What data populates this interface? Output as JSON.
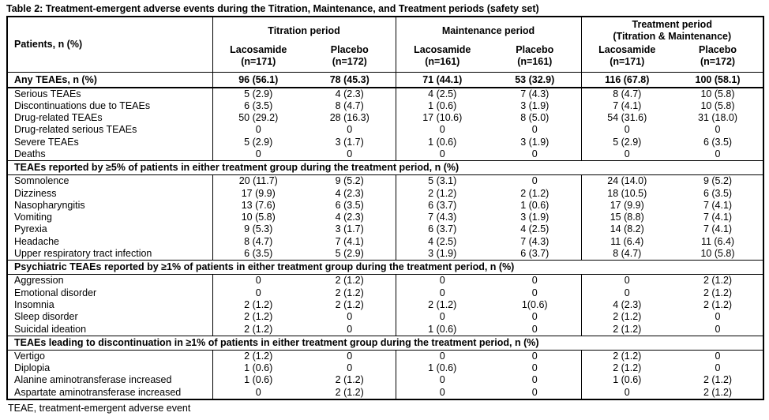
{
  "title": "Table 2: Treatment-emergent adverse events during the Titration, Maintenance, and Treatment periods (safety set)",
  "footnote": "TEAE, treatment-emergent adverse event",
  "table": {
    "row_header": "Patients, n (%)",
    "columns": {
      "groups": [
        {
          "label": "Titration period",
          "sublabel": "",
          "cols": [
            {
              "drug": "Lacosamide",
              "n": "(n=171)"
            },
            {
              "drug": "Placebo",
              "n": "(n=172)"
            }
          ]
        },
        {
          "label": "Maintenance period",
          "sublabel": "",
          "cols": [
            {
              "drug": "Lacosamide",
              "n": "(n=161)"
            },
            {
              "drug": "Placebo",
              "n": "(n=161)"
            }
          ]
        },
        {
          "label": "Treatment period",
          "sublabel": "(Titration & Maintenance)",
          "cols": [
            {
              "drug": "Lacosamide",
              "n": "(n=171)"
            },
            {
              "drug": "Placebo",
              "n": "(n=172)"
            }
          ]
        }
      ]
    },
    "any_row": {
      "label": "Any TEAEs, n (%)",
      "values": [
        "96 (56.1)",
        "78 (45.3)",
        "71 (44.1)",
        "53 (32.9)",
        "116 (67.8)",
        "100 (58.1)"
      ]
    },
    "sections": [
      {
        "header": "",
        "rows": [
          {
            "label": "Serious TEAEs",
            "values": [
              "5 (2.9)",
              "4 (2.3)",
              "4 (2.5)",
              "7 (4.3)",
              "8 (4.7)",
              "10 (5.8)"
            ]
          },
          {
            "label": "Discontinuations due to TEAEs",
            "values": [
              "6 (3.5)",
              "8 (4.7)",
              "1 (0.6)",
              "3 (1.9)",
              "7 (4.1)",
              "10 (5.8)"
            ]
          },
          {
            "label": "Drug-related TEAEs",
            "values": [
              "50 (29.2)",
              "28 (16.3)",
              "17 (10.6)",
              "8 (5.0)",
              "54 (31.6)",
              "31 (18.0)"
            ]
          },
          {
            "label": "Drug-related serious TEAEs",
            "values": [
              "0",
              "0",
              "0",
              "0",
              "0",
              "0"
            ]
          },
          {
            "label": "Severe TEAEs",
            "values": [
              "5 (2.9)",
              "3 (1.7)",
              "1 (0.6)",
              "3 (1.9)",
              "5 (2.9)",
              "6 (3.5)"
            ]
          },
          {
            "label": "Deaths",
            "values": [
              "0",
              "0",
              "0",
              "0",
              "0",
              "0"
            ]
          }
        ]
      },
      {
        "header": "TEAEs reported by ≥5% of patients in either treatment group during the treatment period, n (%)",
        "rows": [
          {
            "label": "Somnolence",
            "values": [
              "20 (11.7)",
              "9 (5.2)",
              "5 (3.1)",
              "0",
              "24 (14.0)",
              "9 (5.2)"
            ]
          },
          {
            "label": "Dizziness",
            "values": [
              "17 (9.9)",
              "4 (2.3)",
              "2 (1.2)",
              "2 (1.2)",
              "18 (10.5)",
              "6 (3.5)"
            ]
          },
          {
            "label": "Nasopharyngitis",
            "values": [
              "13 (7.6)",
              "6 (3.5)",
              "6 (3.7)",
              "1 (0.6)",
              "17 (9.9)",
              "7 (4.1)"
            ]
          },
          {
            "label": "Vomiting",
            "values": [
              "10 (5.8)",
              "4 (2.3)",
              "7 (4.3)",
              "3 (1.9)",
              "15 (8.8)",
              "7 (4.1)"
            ]
          },
          {
            "label": "Pyrexia",
            "values": [
              "9 (5.3)",
              "3 (1.7)",
              "6 (3.7)",
              "4 (2.5)",
              "14 (8.2)",
              "7 (4.1)"
            ]
          },
          {
            "label": "Headache",
            "values": [
              "8 (4.7)",
              "7 (4.1)",
              "4 (2.5)",
              "7 (4.3)",
              "11 (6.4)",
              "11 (6.4)"
            ]
          },
          {
            "label": "Upper respiratory tract infection",
            "values": [
              "6 (3.5)",
              "5 (2.9)",
              "3 (1.9)",
              "6 (3.7)",
              "8 (4.7)",
              "10 (5.8)"
            ]
          }
        ]
      },
      {
        "header": "Psychiatric TEAEs reported by ≥1% of patients in either treatment group during the treatment period, n (%)",
        "rows": [
          {
            "label": "Aggression",
            "values": [
              "0",
              "2 (1.2)",
              "0",
              "0",
              "0",
              "2 (1.2)"
            ]
          },
          {
            "label": "Emotional disorder",
            "values": [
              "0",
              "2 (1.2)",
              "0",
              "0",
              "0",
              "2 (1.2)"
            ]
          },
          {
            "label": "Insomnia",
            "values": [
              "2 (1.2)",
              "2 (1.2)",
              "2 (1.2)",
              "1(0.6)",
              "4 (2.3)",
              "2 (1.2)"
            ]
          },
          {
            "label": "Sleep disorder",
            "values": [
              "2 (1.2)",
              "0",
              "0",
              "0",
              "2 (1.2)",
              "0"
            ]
          },
          {
            "label": "Suicidal ideation",
            "values": [
              "2 (1.2)",
              "0",
              "1 (0.6)",
              "0",
              "2 (1.2)",
              "0"
            ]
          }
        ]
      },
      {
        "header": "TEAEs leading to discontinuation in ≥1% of patients in either treatment group during the treatment period, n (%)",
        "rows": [
          {
            "label": "Vertigo",
            "values": [
              "2 (1.2)",
              "0",
              "0",
              "0",
              "2 (1.2)",
              "0"
            ]
          },
          {
            "label": "Diplopia",
            "values": [
              "1 (0.6)",
              "0",
              "1 (0.6)",
              "0",
              "2 (1.2)",
              "0"
            ]
          },
          {
            "label": "Alanine aminotransferase increased",
            "values": [
              "1 (0.6)",
              "2 (1.2)",
              "0",
              "0",
              "1 (0.6)",
              "2 (1.2)"
            ]
          },
          {
            "label": "Aspartate aminotransferase increased",
            "values": [
              "0",
              "2 (1.2)",
              "0",
              "0",
              "0",
              "2 (1.2)"
            ]
          }
        ]
      }
    ]
  }
}
